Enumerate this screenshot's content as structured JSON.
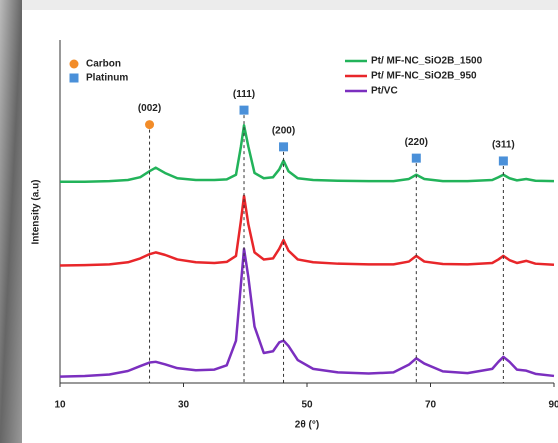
{
  "chart_data": {
    "type": "line",
    "x_label": "2θ (°)",
    "y_label": "Intensity (a.u)",
    "xlim": [
      10,
      90
    ],
    "xticks": [
      10,
      30,
      50,
      70,
      90
    ],
    "ylim": [
      0,
      100
    ],
    "x": [
      10,
      14,
      18,
      21,
      23,
      24.5,
      25.5,
      27,
      29,
      32,
      35,
      37,
      38.5,
      39.3,
      39.8,
      40.5,
      41.5,
      43,
      44.5,
      45.5,
      46.2,
      47,
      48.5,
      51,
      55,
      60,
      64,
      66.5,
      67.7,
      69,
      72,
      76,
      80,
      81,
      81.8,
      82.8,
      84,
      85.5,
      87,
      90
    ],
    "series": [
      {
        "name": "Pt/ MF-NC_SiO2B_1500",
        "color": "#22b35a",
        "values": [
          57,
          57,
          57.2,
          57.5,
          58.3,
          60,
          61,
          59.5,
          58,
          57.5,
          57.5,
          57.7,
          59,
          67,
          73,
          67,
          59.5,
          58,
          58.3,
          60.5,
          63,
          60,
          58,
          57.5,
          57.3,
          57.2,
          57.2,
          57.8,
          59,
          57.8,
          57.2,
          57.2,
          57.5,
          58.3,
          59,
          58,
          57.4,
          57.8,
          57.3,
          57.2
        ]
      },
      {
        "name": "Pt/ MF-NC_SiO2B_950",
        "color": "#e8262a",
        "values": [
          33.3,
          33.4,
          33.6,
          34.2,
          35.3,
          36.5,
          37,
          36.3,
          35,
          34.2,
          34,
          34.3,
          36,
          46,
          53,
          45,
          37,
          35,
          35.3,
          38,
          40.5,
          37.5,
          35,
          34.2,
          33.8,
          33.6,
          33.6,
          34.4,
          36,
          34.4,
          33.7,
          33.6,
          34,
          35,
          36,
          34.8,
          34,
          34.6,
          33.8,
          33.5
        ]
      },
      {
        "name": "Pt/VC",
        "color": "#7b2fbf",
        "values": [
          1.8,
          2,
          2.4,
          3.4,
          4.8,
          5.8,
          6,
          5.3,
          4.2,
          3.6,
          3.8,
          5,
          12,
          28,
          38,
          30,
          16,
          8.5,
          9,
          11.5,
          12,
          10.5,
          6.5,
          4,
          3,
          2.7,
          3,
          5.2,
          7,
          5.5,
          3.3,
          2.8,
          4,
          6,
          7.4,
          6,
          3.8,
          3.5,
          2.6,
          2
        ]
      }
    ],
    "phases": [
      {
        "name": "Carbon",
        "color": "#f28c28",
        "shape": "circle"
      },
      {
        "name": "Platinum",
        "color": "#4a90d9",
        "shape": "square"
      }
    ],
    "peaks": [
      {
        "label": "(002)",
        "x": 24.5,
        "y": 73.2,
        "phase": 0
      },
      {
        "label": "(111)",
        "x": 39.8,
        "y": 77.3,
        "phase": 1
      },
      {
        "label": "(200)",
        "x": 46.2,
        "y": 66.9,
        "phase": 1
      },
      {
        "label": "(220)",
        "x": 67.7,
        "y": 63.7,
        "phase": 1
      },
      {
        "label": "(311)",
        "x": 81.8,
        "y": 62.9,
        "phase": 1
      }
    ]
  }
}
